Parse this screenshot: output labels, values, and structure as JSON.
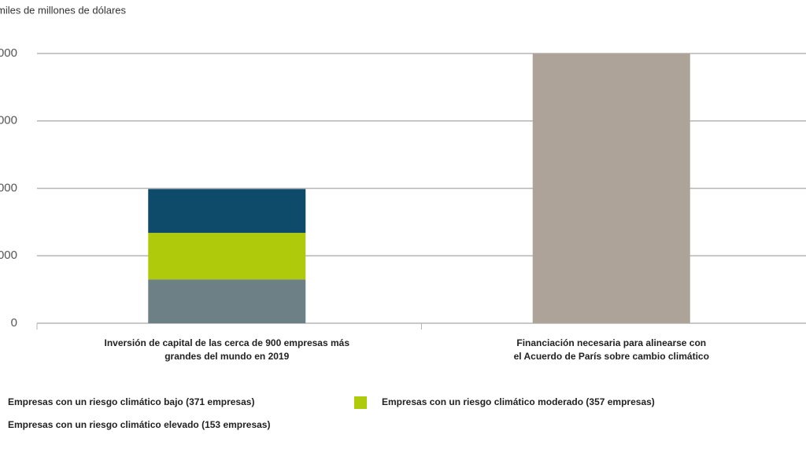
{
  "chart_data": {
    "type": "stacked-bar",
    "y_label": "miles de millones de dólares",
    "categories": [
      [
        "Inversión de capital de las cerca de 900 empresas más",
        "grandes del mundo en 2019"
      ],
      [
        "Financiación necesaria para alinearse con",
        "el Acuerdo de París sobre cambio climático"
      ]
    ],
    "series": [
      {
        "name": "Empresas con un riesgo climático bajo (371 empresas)",
        "color": "#6d8086",
        "values": [
          650,
          null
        ]
      },
      {
        "name": "Empresas con un riesgo climático moderado (357 empresas)",
        "color": "#afca0b",
        "values": [
          690,
          null
        ]
      },
      {
        "name": "Empresas con un riesgo climático elevado (153 empresas)",
        "color": "#0e4a6a",
        "values": [
          650,
          null
        ]
      },
      {
        "color": "#ada398",
        "values": [
          null,
          4000
        ]
      }
    ],
    "ylim": [
      0,
      4000
    ],
    "yticks": [
      0,
      {
        "value": 1000,
        "label": "000"
      },
      {
        "value": 2000,
        "label": "000"
      },
      {
        "value": 3000,
        "label": "000"
      },
      {
        "value": 4000,
        "label": "000"
      }
    ],
    "grid": true
  }
}
